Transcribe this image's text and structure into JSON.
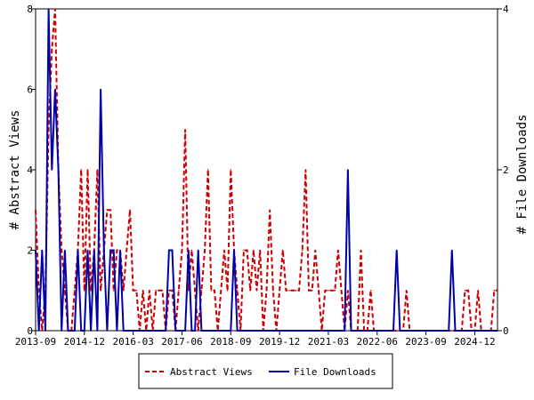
{
  "chart_data": {
    "type": "line",
    "title": "",
    "xlabel": "",
    "ylabel": "# Abstract Views",
    "y2label": "# File Downloads",
    "x_start": "2013-09",
    "x_end": "2025-07",
    "xticks": [
      "2013-09",
      "2014-12",
      "2016-03",
      "2017-06",
      "2018-09",
      "2019-12",
      "2021-03",
      "2022-06",
      "2023-09",
      "2024-12"
    ],
    "ylim": [
      0,
      8
    ],
    "yticks": [
      "0",
      "2",
      "4",
      "6",
      "8"
    ],
    "y2lim": [
      0,
      4
    ],
    "y2ticks": [
      "0",
      "2",
      "4"
    ],
    "grid": false,
    "legend_position": "bottom-center",
    "series": [
      {
        "name": "Abstract Views",
        "axis": "left",
        "color": "#cc0000",
        "style": "dashed",
        "points": [
          [
            "2013-09",
            3
          ],
          [
            "2013-10",
            1
          ],
          [
            "2013-11",
            0
          ],
          [
            "2013-12",
            1
          ],
          [
            "2014-01",
            5
          ],
          [
            "2014-02",
            7
          ],
          [
            "2014-03",
            8
          ],
          [
            "2014-04",
            4
          ],
          [
            "2014-05",
            2
          ],
          [
            "2014-06",
            1
          ],
          [
            "2014-07",
            0
          ],
          [
            "2014-08",
            0
          ],
          [
            "2014-09",
            1
          ],
          [
            "2014-10",
            2
          ],
          [
            "2014-11",
            4
          ],
          [
            "2014-12",
            1
          ],
          [
            "2015-01",
            4
          ],
          [
            "2015-02",
            1
          ],
          [
            "2015-03",
            2
          ],
          [
            "2015-04",
            4
          ],
          [
            "2015-05",
            1
          ],
          [
            "2015-06",
            2
          ],
          [
            "2015-07",
            3
          ],
          [
            "2015-08",
            3
          ],
          [
            "2015-09",
            1
          ],
          [
            "2015-10",
            2
          ],
          [
            "2015-11",
            2
          ],
          [
            "2015-12",
            1
          ],
          [
            "2016-01",
            2
          ],
          [
            "2016-02",
            3
          ],
          [
            "2016-03",
            1
          ],
          [
            "2016-04",
            1
          ],
          [
            "2016-05",
            0
          ],
          [
            "2016-06",
            1
          ],
          [
            "2016-07",
            0
          ],
          [
            "2016-08",
            1
          ],
          [
            "2016-09",
            0
          ],
          [
            "2016-10",
            1
          ],
          [
            "2016-11",
            1
          ],
          [
            "2016-12",
            1
          ],
          [
            "2017-01",
            0
          ],
          [
            "2017-02",
            1
          ],
          [
            "2017-03",
            1
          ],
          [
            "2017-04",
            0
          ],
          [
            "2017-05",
            1
          ],
          [
            "2017-06",
            2
          ],
          [
            "2017-07",
            5
          ],
          [
            "2017-08",
            1
          ],
          [
            "2017-09",
            2
          ],
          [
            "2017-10",
            1
          ],
          [
            "2017-11",
            0
          ],
          [
            "2017-12",
            1
          ],
          [
            "2018-01",
            2
          ],
          [
            "2018-02",
            4
          ],
          [
            "2018-03",
            1
          ],
          [
            "2018-04",
            1
          ],
          [
            "2018-05",
            0
          ],
          [
            "2018-06",
            1
          ],
          [
            "2018-07",
            2
          ],
          [
            "2018-08",
            1
          ],
          [
            "2018-09",
            4
          ],
          [
            "2018-10",
            2
          ],
          [
            "2018-11",
            1
          ],
          [
            "2018-12",
            0
          ],
          [
            "2019-01",
            2
          ],
          [
            "2019-02",
            2
          ],
          [
            "2019-03",
            1
          ],
          [
            "2019-04",
            2
          ],
          [
            "2019-05",
            1
          ],
          [
            "2019-06",
            2
          ],
          [
            "2019-07",
            0
          ],
          [
            "2019-08",
            1
          ],
          [
            "2019-09",
            3
          ],
          [
            "2019-10",
            1
          ],
          [
            "2019-11",
            0
          ],
          [
            "2019-12",
            1
          ],
          [
            "2020-01",
            2
          ],
          [
            "2020-02",
            1
          ],
          [
            "2020-03",
            1
          ],
          [
            "2020-04",
            1
          ],
          [
            "2020-05",
            1
          ],
          [
            "2020-06",
            1
          ],
          [
            "2020-07",
            2
          ],
          [
            "2020-08",
            4
          ],
          [
            "2020-09",
            1
          ],
          [
            "2020-10",
            1
          ],
          [
            "2020-11",
            2
          ],
          [
            "2020-12",
            1
          ],
          [
            "2021-01",
            0
          ],
          [
            "2021-02",
            1
          ],
          [
            "2021-03",
            1
          ],
          [
            "2021-04",
            1
          ],
          [
            "2021-05",
            1
          ],
          [
            "2021-06",
            2
          ],
          [
            "2021-07",
            1
          ],
          [
            "2021-08",
            0
          ],
          [
            "2021-09",
            1
          ],
          [
            "2021-10",
            0
          ],
          [
            "2021-11",
            0
          ],
          [
            "2021-12",
            0
          ],
          [
            "2022-01",
            2
          ],
          [
            "2022-02",
            0
          ],
          [
            "2022-03",
            0
          ],
          [
            "2022-04",
            1
          ],
          [
            "2022-05",
            0
          ],
          [
            "2022-06",
            0
          ],
          [
            "2022-07",
            0
          ],
          [
            "2022-08",
            0
          ],
          [
            "2022-09",
            0
          ],
          [
            "2022-10",
            0
          ],
          [
            "2022-11",
            0
          ],
          [
            "2022-12",
            0
          ],
          [
            "2023-01",
            0
          ],
          [
            "2023-02",
            0
          ],
          [
            "2023-03",
            1
          ],
          [
            "2023-04",
            0
          ],
          [
            "2023-05",
            0
          ],
          [
            "2023-06",
            0
          ],
          [
            "2023-07",
            0
          ],
          [
            "2023-08",
            0
          ],
          [
            "2023-09",
            0
          ],
          [
            "2023-10",
            0
          ],
          [
            "2023-11",
            0
          ],
          [
            "2023-12",
            0
          ],
          [
            "2024-01",
            0
          ],
          [
            "2024-02",
            0
          ],
          [
            "2024-03",
            0
          ],
          [
            "2024-04",
            0
          ],
          [
            "2024-05",
            0
          ],
          [
            "2024-06",
            0
          ],
          [
            "2024-07",
            0
          ],
          [
            "2024-08",
            0
          ],
          [
            "2024-09",
            1
          ],
          [
            "2024-10",
            1
          ],
          [
            "2024-11",
            0
          ],
          [
            "2024-12",
            0
          ],
          [
            "2025-01",
            1
          ],
          [
            "2025-02",
            0
          ],
          [
            "2025-03",
            0
          ],
          [
            "2025-04",
            0
          ],
          [
            "2025-05",
            0
          ],
          [
            "2025-06",
            1
          ],
          [
            "2025-07",
            1
          ]
        ]
      },
      {
        "name": "File Downloads",
        "axis": "right",
        "color": "#0000aa",
        "style": "solid",
        "points": [
          [
            "2013-09",
            1
          ],
          [
            "2013-10",
            0
          ],
          [
            "2013-11",
            1
          ],
          [
            "2013-12",
            0
          ],
          [
            "2014-01",
            4
          ],
          [
            "2014-02",
            2
          ],
          [
            "2014-03",
            3
          ],
          [
            "2014-04",
            2
          ],
          [
            "2014-05",
            0
          ],
          [
            "2014-06",
            1
          ],
          [
            "2014-07",
            0
          ],
          [
            "2014-08",
            0
          ],
          [
            "2014-09",
            0
          ],
          [
            "2014-10",
            1
          ],
          [
            "2014-11",
            0
          ],
          [
            "2014-12",
            0
          ],
          [
            "2015-01",
            1
          ],
          [
            "2015-02",
            0
          ],
          [
            "2015-03",
            1
          ],
          [
            "2015-04",
            0
          ],
          [
            "2015-05",
            3
          ],
          [
            "2015-06",
            1
          ],
          [
            "2015-07",
            0
          ],
          [
            "2015-08",
            1
          ],
          [
            "2015-09",
            1
          ],
          [
            "2015-10",
            0
          ],
          [
            "2015-11",
            1
          ],
          [
            "2015-12",
            0
          ],
          [
            "2016-01",
            0
          ],
          [
            "2016-02",
            0
          ],
          [
            "2016-03",
            0
          ],
          [
            "2016-04",
            0
          ],
          [
            "2016-05",
            0
          ],
          [
            "2016-06",
            0
          ],
          [
            "2016-07",
            0
          ],
          [
            "2016-08",
            0
          ],
          [
            "2016-09",
            0
          ],
          [
            "2016-10",
            0
          ],
          [
            "2016-11",
            0
          ],
          [
            "2016-12",
            0
          ],
          [
            "2017-01",
            0
          ],
          [
            "2017-02",
            1
          ],
          [
            "2017-03",
            1
          ],
          [
            "2017-04",
            0
          ],
          [
            "2017-05",
            0
          ],
          [
            "2017-06",
            0
          ],
          [
            "2017-07",
            0
          ],
          [
            "2017-08",
            1
          ],
          [
            "2017-09",
            0
          ],
          [
            "2017-10",
            0
          ],
          [
            "2017-11",
            1
          ],
          [
            "2017-12",
            0
          ],
          [
            "2018-01",
            0
          ],
          [
            "2018-02",
            0
          ],
          [
            "2018-03",
            0
          ],
          [
            "2018-04",
            0
          ],
          [
            "2018-05",
            0
          ],
          [
            "2018-06",
            0
          ],
          [
            "2018-07",
            0
          ],
          [
            "2018-08",
            0
          ],
          [
            "2018-09",
            0
          ],
          [
            "2018-10",
            1
          ],
          [
            "2018-11",
            0
          ],
          [
            "2018-12",
            0
          ],
          [
            "2019-01",
            0
          ],
          [
            "2019-02",
            0
          ],
          [
            "2019-03",
            0
          ],
          [
            "2019-04",
            0
          ],
          [
            "2019-05",
            0
          ],
          [
            "2019-06",
            0
          ],
          [
            "2019-07",
            0
          ],
          [
            "2019-08",
            0
          ],
          [
            "2019-09",
            0
          ],
          [
            "2019-10",
            0
          ],
          [
            "2019-11",
            0
          ],
          [
            "2019-12",
            0
          ],
          [
            "2020-01",
            0
          ],
          [
            "2020-02",
            0
          ],
          [
            "2020-03",
            0
          ],
          [
            "2020-04",
            0
          ],
          [
            "2020-05",
            0
          ],
          [
            "2020-06",
            0
          ],
          [
            "2020-07",
            0
          ],
          [
            "2020-08",
            0
          ],
          [
            "2020-09",
            0
          ],
          [
            "2020-10",
            0
          ],
          [
            "2020-11",
            0
          ],
          [
            "2020-12",
            0
          ],
          [
            "2021-01",
            0
          ],
          [
            "2021-02",
            0
          ],
          [
            "2021-03",
            0
          ],
          [
            "2021-04",
            0
          ],
          [
            "2021-05",
            0
          ],
          [
            "2021-06",
            0
          ],
          [
            "2021-07",
            0
          ],
          [
            "2021-08",
            0
          ],
          [
            "2021-09",
            2
          ],
          [
            "2021-10",
            0
          ],
          [
            "2021-11",
            0
          ],
          [
            "2021-12",
            0
          ],
          [
            "2022-01",
            0
          ],
          [
            "2022-02",
            0
          ],
          [
            "2022-03",
            0
          ],
          [
            "2022-04",
            0
          ],
          [
            "2022-05",
            0
          ],
          [
            "2022-06",
            0
          ],
          [
            "2022-07",
            0
          ],
          [
            "2022-08",
            0
          ],
          [
            "2022-09",
            0
          ],
          [
            "2022-10",
            0
          ],
          [
            "2022-11",
            0
          ],
          [
            "2022-12",
            1
          ],
          [
            "2023-01",
            0
          ],
          [
            "2023-02",
            0
          ],
          [
            "2023-03",
            0
          ],
          [
            "2023-04",
            0
          ],
          [
            "2023-05",
            0
          ],
          [
            "2023-06",
            0
          ],
          [
            "2023-07",
            0
          ],
          [
            "2023-08",
            0
          ],
          [
            "2023-09",
            0
          ],
          [
            "2023-10",
            0
          ],
          [
            "2023-11",
            0
          ],
          [
            "2023-12",
            0
          ],
          [
            "2024-01",
            0
          ],
          [
            "2024-02",
            0
          ],
          [
            "2024-03",
            0
          ],
          [
            "2024-04",
            0
          ],
          [
            "2024-05",
            1
          ],
          [
            "2024-06",
            0
          ],
          [
            "2024-07",
            0
          ],
          [
            "2024-08",
            0
          ],
          [
            "2024-09",
            0
          ],
          [
            "2024-10",
            0
          ],
          [
            "2024-11",
            0
          ],
          [
            "2024-12",
            0
          ],
          [
            "2025-01",
            0
          ],
          [
            "2025-02",
            0
          ],
          [
            "2025-03",
            0
          ],
          [
            "2025-04",
            0
          ],
          [
            "2025-05",
            0
          ],
          [
            "2025-06",
            0
          ],
          [
            "2025-07",
            0
          ]
        ]
      }
    ]
  }
}
